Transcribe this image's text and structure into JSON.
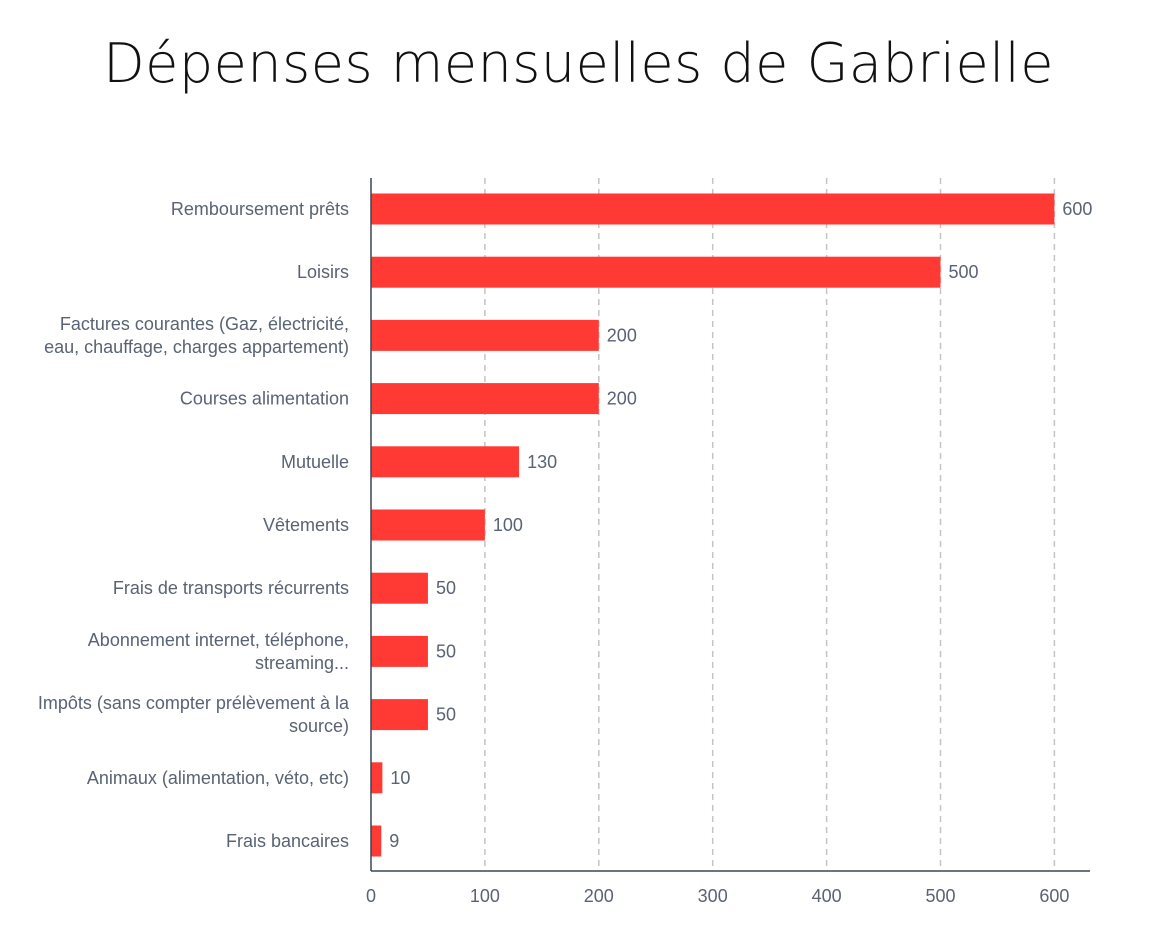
{
  "chart_data": {
    "type": "bar",
    "orientation": "horizontal",
    "title": "Dépenses mensuelles de Gabrielle",
    "categories": [
      [
        "Remboursement prêts"
      ],
      [
        "Loisirs"
      ],
      [
        "Factures courantes (Gaz, électricité,",
        "eau, chauffage, charges appartement)"
      ],
      [
        "Courses alimentation"
      ],
      [
        "Mutuelle"
      ],
      [
        "Vêtements"
      ],
      [
        "Frais de transports récurrents"
      ],
      [
        "Abonnement internet, téléphone,",
        "streaming..."
      ],
      [
        "Impôts (sans compter prélèvement à la",
        "source)"
      ],
      [
        "Animaux (alimentation, véto, etc)"
      ],
      [
        "Frais bancaires"
      ]
    ],
    "values": [
      600,
      500,
      200,
      200,
      130,
      100,
      50,
      50,
      50,
      10,
      9
    ],
    "data_labels": [
      "600",
      "500",
      "200",
      "200",
      "130",
      "100",
      "50",
      "50",
      "50",
      "10",
      "9"
    ],
    "xlim": [
      0,
      630
    ],
    "xticks": [
      "0",
      "100",
      "200",
      "300",
      "400",
      "500",
      "600"
    ],
    "xtick_values": [
      0,
      100,
      200,
      300,
      400,
      500,
      600
    ],
    "grid": "vertical-dashed",
    "bar_color": "#ff3a35",
    "legend": "none"
  }
}
